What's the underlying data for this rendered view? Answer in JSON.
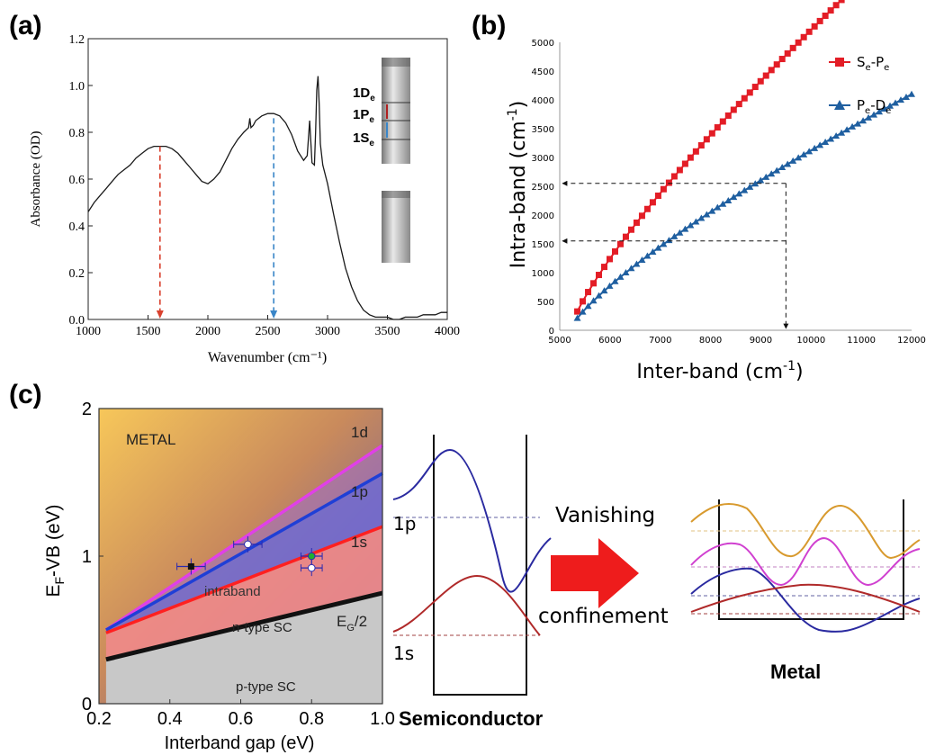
{
  "panels": {
    "a": {
      "label": "(a)"
    },
    "b": {
      "label": "(b)"
    },
    "c": {
      "label": "(c)"
    }
  },
  "chart_data": [
    {
      "panel": "a",
      "type": "line",
      "xlabel": "Wavenumber (cm⁻¹)",
      "ylabel": "Absorbance (OD)",
      "xlim": [
        1000,
        4000
      ],
      "ylim": [
        0,
        1.2
      ],
      "xticks": [
        1000,
        1500,
        2000,
        2500,
        3000,
        3500,
        4000
      ],
      "yticks": [
        "0.0",
        "0.2",
        "0.4",
        "0.6",
        "0.8",
        "1.0",
        "1.2"
      ],
      "series": [
        {
          "x": [
            1000,
            1050,
            1100,
            1150,
            1200,
            1250,
            1300,
            1350,
            1400,
            1450,
            1500,
            1550,
            1600,
            1650,
            1700,
            1750,
            1800,
            1850,
            1900,
            1950,
            2000,
            2050,
            2100,
            2150,
            2200,
            2250,
            2300,
            2340,
            2350,
            2360,
            2380,
            2400,
            2450,
            2500,
            2550,
            2600,
            2650,
            2700,
            2750,
            2800,
            2830,
            2850,
            2860,
            2870,
            2890,
            2900,
            2910,
            2920,
            2930,
            2940,
            2960,
            3000,
            3050,
            3100,
            3150,
            3200,
            3250,
            3300,
            3350,
            3400,
            3450,
            3500,
            3550,
            3600,
            3650,
            3700,
            3750,
            3800,
            3850,
            3900,
            3950,
            4000
          ],
          "y": [
            0.46,
            0.5,
            0.53,
            0.56,
            0.59,
            0.62,
            0.64,
            0.66,
            0.69,
            0.71,
            0.73,
            0.74,
            0.74,
            0.74,
            0.73,
            0.71,
            0.68,
            0.65,
            0.62,
            0.59,
            0.58,
            0.6,
            0.63,
            0.68,
            0.73,
            0.77,
            0.8,
            0.82,
            0.86,
            0.82,
            0.83,
            0.85,
            0.87,
            0.88,
            0.88,
            0.87,
            0.84,
            0.79,
            0.72,
            0.68,
            0.7,
            0.85,
            0.76,
            0.67,
            0.66,
            0.8,
            0.98,
            1.04,
            0.92,
            0.75,
            0.66,
            0.58,
            0.45,
            0.33,
            0.22,
            0.14,
            0.08,
            0.04,
            0.02,
            0.01,
            0.01,
            0.01,
            0.0,
            0.0,
            0.01,
            0.01,
            0.01,
            0.02,
            0.02,
            0.02,
            0.03,
            0.03
          ]
        }
      ],
      "arrows": [
        {
          "x": 1600,
          "color": "#d9412e"
        },
        {
          "x": 2550,
          "color": "#3a86c8"
        }
      ],
      "inset_labels": [
        "1D",
        "e",
        "1P",
        "e",
        "1S",
        "e"
      ]
    },
    {
      "panel": "b",
      "type": "scatter",
      "xlabel": "Inter-band (cm",
      "xlabel_sup": "-1",
      "xlabel_end": ")",
      "ylabel": "Intra-band (cm",
      "ylabel_sup": "-1",
      "ylabel_end": ")",
      "xlim": [
        5000,
        12000
      ],
      "ylim": [
        0,
        5000
      ],
      "xticks": [
        5000,
        6000,
        7000,
        8000,
        9000,
        10000,
        11000,
        12000
      ],
      "yticks": [
        0,
        500,
        1000,
        1500,
        2000,
        2500,
        3000,
        3500,
        4000,
        4500,
        5000
      ],
      "series": [
        {
          "name": "S",
          "sub1": "e",
          "mid": "-P",
          "sub2": "e",
          "color": "#e31d26",
          "marker": "square",
          "x0": 5350,
          "x1": 12000,
          "coef": 5.92,
          "pow": 0.8
        },
        {
          "name": "P",
          "sub1": "e",
          "mid": "-D",
          "sub2": "e",
          "color": "#1f5fa0",
          "marker": "triangle",
          "x0": 5350,
          "x1": 12000,
          "coef": 4.2,
          "pow": 0.78
        }
      ],
      "guides": {
        "x": 9500,
        "y1": 2550,
        "y2": 1550
      }
    },
    {
      "panel": "c",
      "type": "line",
      "xlabel": "Interband gap (eV)",
      "ylabel": "E",
      "ylabel_sub": "F",
      "ylabel_end": "-VB (eV)",
      "xlim": [
        0.2,
        1.0
      ],
      "ylim": [
        0,
        2
      ],
      "xticks": [
        "0.2",
        "0.4",
        "0.6",
        "0.8",
        "1.0"
      ],
      "yticks": [
        "0",
        "1",
        "2"
      ],
      "series": [
        {
          "name": "1d",
          "color": "#e040e8",
          "x": [
            0.22,
            1.0
          ],
          "y": [
            0.5,
            1.75
          ]
        },
        {
          "name": "1p",
          "color": "#1f3fd6",
          "x": [
            0.22,
            1.0
          ],
          "y": [
            0.5,
            1.56
          ]
        },
        {
          "name": "1s",
          "color": "#ff2020",
          "x": [
            0.22,
            1.0
          ],
          "y": [
            0.48,
            1.2
          ]
        },
        {
          "name": "E_G/2",
          "color": "#111111",
          "x": [
            0.22,
            1.0
          ],
          "y": [
            0.3,
            0.75
          ]
        }
      ],
      "points": [
        {
          "x": 0.46,
          "y": 0.93,
          "xerr": 0.04,
          "fill": "#111111"
        },
        {
          "x": 0.62,
          "y": 1.08,
          "xerr": 0.04,
          "fill": "#ffffff"
        },
        {
          "x": 0.8,
          "y": 1.0,
          "xerr": 0.03,
          "fill": "#20b030"
        },
        {
          "x": 0.8,
          "y": 0.92,
          "xerr": 0.03,
          "fill": "#ffffff"
        }
      ],
      "region_labels": {
        "metal": "METAL",
        "d": "1d",
        "p": "1p",
        "s": "1s",
        "intraband": "intraband",
        "ntype": "n-type SC",
        "eg": "E",
        "eg_sub": "G",
        "eg_end": "/2",
        "ptype": "p-type SC"
      }
    }
  ],
  "schematic": {
    "label_1p": "1p",
    "label_1s": "1s",
    "vanishing": "Vanishing",
    "confinement": "confinement",
    "semiconductor": "Semiconductor",
    "metal": "Metal"
  }
}
